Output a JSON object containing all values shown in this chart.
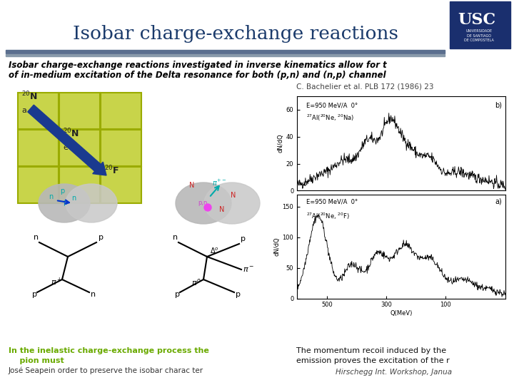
{
  "title": "Isobar charge-exchange reactions",
  "title_color": "#1a3a6b",
  "bg_color": "#ffffff",
  "subtitle_line1": "Isobar charge-exchange reactions investigated in inverse kinematics allow for t",
  "subtitle_line2": "of in-medium excitation of the Delta resonance for both (p,n) and (n,p) channel",
  "subtitle_color": "#000000",
  "ref_text": "C. Bachelier et al. PLB 172 (1986) 23",
  "bottom_left_line1": "In the inelastic charge-exchange process the",
  "bottom_left_line2": "    pion must",
  "bottom_left_line3": "José Seapein order to preserve the isobar charac ter",
  "bottom_left_color": "#6aaa00",
  "bottom_right_line1": "The momentum recoil induced by the",
  "bottom_right_line2": "emission proves the excitation of the r",
  "bottom_right_line3": "Hirschegg Int. Workshop, Janua",
  "usc_color": "#1a2f6e",
  "usc_text": "USC",
  "sep_color1": "#5a6e8e",
  "sep_color2": "#8899aa",
  "grid_color": "#c8d44a",
  "grid_outline_color": "#9aab00",
  "arrow_color": "#1a3a8f",
  "blob_color1": "#b8b8b8",
  "blob_color2": "#c8c8c8"
}
